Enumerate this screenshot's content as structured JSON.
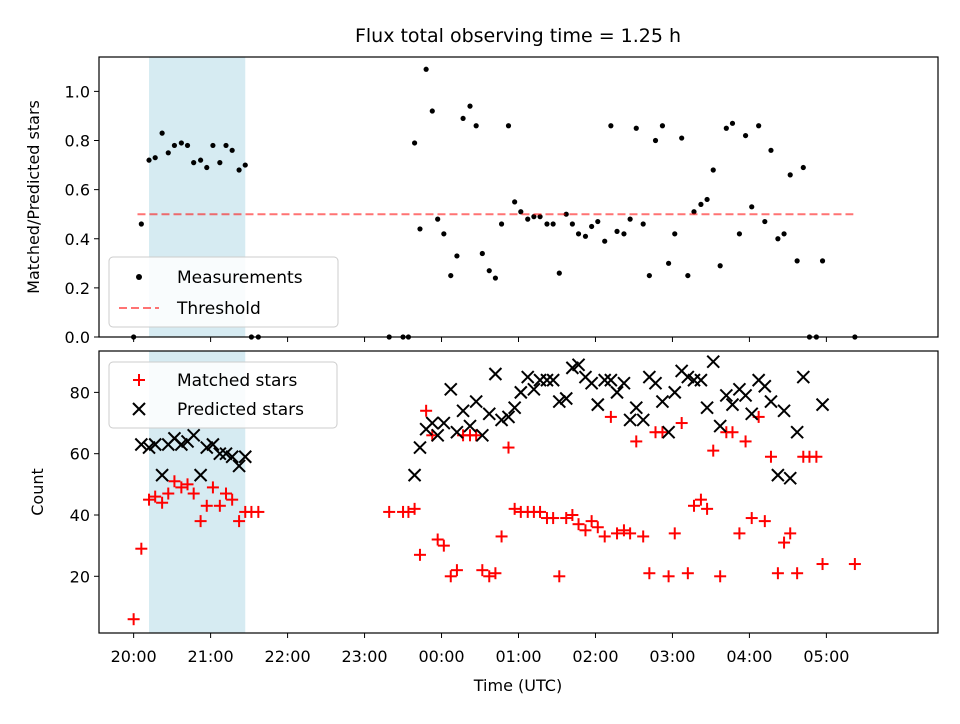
{
  "title": "Flux total observing time = 1.25 h",
  "xlabel": "Time (UTC)",
  "x_ticks": [
    "20:00",
    "21:00",
    "22:00",
    "23:00",
    "00:00",
    "01:00",
    "02:00",
    "03:00",
    "04:00",
    "05:00"
  ],
  "x_tick_hours": [
    20,
    21,
    22,
    23,
    24,
    25,
    26,
    27,
    28,
    29
  ],
  "x_range_hours": [
    19.55,
    30.45
  ],
  "highlight_span_hours": [
    20.2,
    21.45
  ],
  "colors": {
    "highlight": "#add8e6",
    "measurements": "#000000",
    "threshold": "#ff0000",
    "matched": "#ff0000",
    "predicted": "#000000"
  },
  "chart_data": [
    {
      "type": "scatter",
      "ylabel": "Matched/Predicted stars",
      "ylim": [
        0.0,
        1.14
      ],
      "y_ticks": [
        "0.0",
        "0.2",
        "0.4",
        "0.6",
        "0.8",
        "1.0"
      ],
      "y_tick_values": [
        0.0,
        0.2,
        0.4,
        0.6,
        0.8,
        1.0
      ],
      "legend": {
        "placement": "lower-left",
        "entries": [
          "Measurements",
          "Threshold"
        ]
      },
      "threshold": {
        "name": "Threshold",
        "value": 0.5,
        "x_range_hours": [
          20.05,
          29.35
        ]
      },
      "series": [
        {
          "name": "Measurements",
          "marker": "dot",
          "points": [
            [
              20.0,
              0.0
            ],
            [
              20.1,
              0.46
            ],
            [
              20.2,
              0.72
            ],
            [
              20.28,
              0.73
            ],
            [
              20.37,
              0.83
            ],
            [
              20.45,
              0.75
            ],
            [
              20.53,
              0.78
            ],
            [
              20.62,
              0.79
            ],
            [
              20.7,
              0.78
            ],
            [
              20.78,
              0.71
            ],
            [
              20.87,
              0.72
            ],
            [
              20.95,
              0.69
            ],
            [
              21.03,
              0.78
            ],
            [
              21.12,
              0.71
            ],
            [
              21.2,
              0.78
            ],
            [
              21.28,
              0.76
            ],
            [
              21.37,
              0.68
            ],
            [
              21.45,
              0.7
            ],
            [
              21.53,
              0.0
            ],
            [
              21.62,
              0.0
            ],
            [
              23.32,
              0.0
            ],
            [
              23.5,
              0.0
            ],
            [
              23.57,
              0.0
            ],
            [
              23.65,
              0.79
            ],
            [
              23.72,
              0.44
            ],
            [
              23.8,
              1.09
            ],
            [
              23.88,
              0.92
            ],
            [
              23.95,
              0.48
            ],
            [
              24.03,
              0.42
            ],
            [
              24.12,
              0.25
            ],
            [
              24.2,
              0.33
            ],
            [
              24.28,
              0.89
            ],
            [
              24.37,
              0.94
            ],
            [
              24.45,
              0.86
            ],
            [
              24.53,
              0.34
            ],
            [
              24.62,
              0.27
            ],
            [
              24.7,
              0.24
            ],
            [
              24.78,
              0.46
            ],
            [
              24.87,
              0.86
            ],
            [
              24.95,
              0.55
            ],
            [
              25.03,
              0.51
            ],
            [
              25.12,
              0.48
            ],
            [
              25.2,
              0.49
            ],
            [
              25.28,
              0.49
            ],
            [
              25.37,
              0.46
            ],
            [
              25.45,
              0.46
            ],
            [
              25.53,
              0.26
            ],
            [
              25.62,
              0.5
            ],
            [
              25.7,
              0.46
            ],
            [
              25.78,
              0.42
            ],
            [
              25.87,
              0.41
            ],
            [
              25.95,
              0.45
            ],
            [
              26.03,
              0.47
            ],
            [
              26.12,
              0.39
            ],
            [
              26.2,
              0.86
            ],
            [
              26.28,
              0.43
            ],
            [
              26.37,
              0.42
            ],
            [
              26.45,
              0.48
            ],
            [
              26.53,
              0.85
            ],
            [
              26.62,
              0.46
            ],
            [
              26.7,
              0.25
            ],
            [
              26.78,
              0.8
            ],
            [
              26.87,
              0.86
            ],
            [
              26.95,
              0.3
            ],
            [
              27.03,
              0.42
            ],
            [
              27.12,
              0.81
            ],
            [
              27.2,
              0.25
            ],
            [
              27.28,
              0.51
            ],
            [
              27.37,
              0.54
            ],
            [
              27.45,
              0.56
            ],
            [
              27.53,
              0.68
            ],
            [
              27.62,
              0.29
            ],
            [
              27.7,
              0.85
            ],
            [
              27.78,
              0.87
            ],
            [
              27.87,
              0.42
            ],
            [
              27.95,
              0.82
            ],
            [
              28.03,
              0.53
            ],
            [
              28.12,
              0.86
            ],
            [
              28.2,
              0.47
            ],
            [
              28.28,
              0.76
            ],
            [
              28.37,
              0.4
            ],
            [
              28.45,
              0.42
            ],
            [
              28.53,
              0.66
            ],
            [
              28.62,
              0.31
            ],
            [
              28.7,
              0.69
            ],
            [
              28.78,
              0.0
            ],
            [
              28.87,
              0.0
            ],
            [
              28.95,
              0.31
            ],
            [
              29.37,
              0.0
            ]
          ]
        }
      ]
    },
    {
      "type": "scatter",
      "ylabel": "Count",
      "ylim": [
        1.5,
        93.5
      ],
      "y_ticks": [
        "20",
        "40",
        "60",
        "80"
      ],
      "y_tick_values": [
        20,
        40,
        60,
        80
      ],
      "legend": {
        "placement": "top-left",
        "entries": [
          "Matched stars",
          "Predicted stars"
        ]
      },
      "series": [
        {
          "name": "Matched stars",
          "marker": "plus",
          "points": [
            [
              20.0,
              6
            ],
            [
              20.1,
              29
            ],
            [
              20.2,
              45
            ],
            [
              20.28,
              46
            ],
            [
              20.37,
              44
            ],
            [
              20.45,
              47
            ],
            [
              20.53,
              51
            ],
            [
              20.62,
              49
            ],
            [
              20.7,
              50
            ],
            [
              20.78,
              47
            ],
            [
              20.87,
              38
            ],
            [
              20.95,
              43
            ],
            [
              21.03,
              49
            ],
            [
              21.12,
              43
            ],
            [
              21.2,
              47
            ],
            [
              21.28,
              45
            ],
            [
              21.37,
              38
            ],
            [
              21.45,
              41
            ],
            [
              21.53,
              41
            ],
            [
              21.62,
              41
            ],
            [
              23.32,
              41
            ],
            [
              23.5,
              41
            ],
            [
              23.57,
              41
            ],
            [
              23.65,
              42
            ],
            [
              23.72,
              27
            ],
            [
              23.8,
              74
            ],
            [
              23.88,
              66
            ],
            [
              23.95,
              32
            ],
            [
              24.03,
              30
            ],
            [
              24.12,
              20
            ],
            [
              24.2,
              22
            ],
            [
              24.28,
              66
            ],
            [
              24.37,
              66
            ],
            [
              24.45,
              66
            ],
            [
              24.53,
              22
            ],
            [
              24.62,
              20
            ],
            [
              24.7,
              21
            ],
            [
              24.78,
              33
            ],
            [
              24.87,
              62
            ],
            [
              24.95,
              42
            ],
            [
              25.03,
              41
            ],
            [
              25.12,
              41
            ],
            [
              25.2,
              41
            ],
            [
              25.28,
              41
            ],
            [
              25.37,
              39
            ],
            [
              25.45,
              39
            ],
            [
              25.53,
              20
            ],
            [
              25.62,
              39
            ],
            [
              25.7,
              40
            ],
            [
              25.78,
              37
            ],
            [
              25.87,
              35
            ],
            [
              25.95,
              38
            ],
            [
              26.03,
              36
            ],
            [
              26.12,
              33
            ],
            [
              26.2,
              72
            ],
            [
              26.28,
              34
            ],
            [
              26.37,
              35
            ],
            [
              26.45,
              34
            ],
            [
              26.53,
              64
            ],
            [
              26.62,
              33
            ],
            [
              26.7,
              21
            ],
            [
              26.78,
              67
            ],
            [
              26.87,
              67
            ],
            [
              26.95,
              20
            ],
            [
              27.03,
              34
            ],
            [
              27.12,
              70
            ],
            [
              27.2,
              21
            ],
            [
              27.28,
              43
            ],
            [
              27.37,
              45
            ],
            [
              27.45,
              42
            ],
            [
              27.53,
              61
            ],
            [
              27.62,
              20
            ],
            [
              27.7,
              67
            ],
            [
              27.78,
              67
            ],
            [
              27.87,
              34
            ],
            [
              27.95,
              64
            ],
            [
              28.03,
              39
            ],
            [
              28.12,
              72
            ],
            [
              28.2,
              38
            ],
            [
              28.28,
              59
            ],
            [
              28.37,
              21
            ],
            [
              28.45,
              31
            ],
            [
              28.53,
              34
            ],
            [
              28.62,
              21
            ],
            [
              28.7,
              59
            ],
            [
              28.78,
              59
            ],
            [
              28.87,
              59
            ],
            [
              28.95,
              24
            ],
            [
              29.37,
              24
            ]
          ]
        },
        {
          "name": "Predicted stars",
          "marker": "x",
          "points": [
            [
              20.1,
              63
            ],
            [
              20.2,
              62
            ],
            [
              20.28,
              63
            ],
            [
              20.37,
              53
            ],
            [
              20.45,
              63
            ],
            [
              20.53,
              65
            ],
            [
              20.62,
              63
            ],
            [
              20.7,
              64
            ],
            [
              20.78,
              66
            ],
            [
              20.87,
              53
            ],
            [
              20.95,
              62
            ],
            [
              21.03,
              63
            ],
            [
              21.12,
              60
            ],
            [
              21.2,
              60
            ],
            [
              21.28,
              59
            ],
            [
              21.37,
              56
            ],
            [
              21.45,
              59
            ],
            [
              23.65,
              53
            ],
            [
              23.72,
              62
            ],
            [
              23.8,
              68
            ],
            [
              23.88,
              70
            ],
            [
              23.95,
              66
            ],
            [
              24.03,
              70
            ],
            [
              24.12,
              81
            ],
            [
              24.2,
              67
            ],
            [
              24.28,
              74
            ],
            [
              24.37,
              69
            ],
            [
              24.45,
              77
            ],
            [
              24.53,
              66
            ],
            [
              24.62,
              73
            ],
            [
              24.7,
              86
            ],
            [
              24.78,
              71
            ],
            [
              24.87,
              72
            ],
            [
              24.95,
              75
            ],
            [
              25.03,
              80
            ],
            [
              25.12,
              85
            ],
            [
              25.2,
              81
            ],
            [
              25.28,
              84
            ],
            [
              25.37,
              84
            ],
            [
              25.45,
              84
            ],
            [
              25.53,
              77
            ],
            [
              25.62,
              78
            ],
            [
              25.7,
              88
            ],
            [
              25.78,
              89
            ],
            [
              25.87,
              85
            ],
            [
              25.95,
              83
            ],
            [
              26.03,
              76
            ],
            [
              26.12,
              84
            ],
            [
              26.2,
              84
            ],
            [
              26.28,
              80
            ],
            [
              26.37,
              83
            ],
            [
              26.45,
              71
            ],
            [
              26.53,
              75
            ],
            [
              26.62,
              71
            ],
            [
              26.7,
              85
            ],
            [
              26.78,
              83
            ],
            [
              26.87,
              77
            ],
            [
              26.95,
              67
            ],
            [
              27.03,
              80
            ],
            [
              27.12,
              87
            ],
            [
              27.2,
              85
            ],
            [
              27.28,
              84
            ],
            [
              27.37,
              84
            ],
            [
              27.45,
              75
            ],
            [
              27.53,
              90
            ],
            [
              27.62,
              69
            ],
            [
              27.7,
              79
            ],
            [
              27.78,
              76
            ],
            [
              27.87,
              81
            ],
            [
              27.95,
              79
            ],
            [
              28.03,
              73
            ],
            [
              28.12,
              84
            ],
            [
              28.2,
              82
            ],
            [
              28.28,
              77
            ],
            [
              28.37,
              53
            ],
            [
              28.45,
              74
            ],
            [
              28.53,
              52
            ],
            [
              28.62,
              67
            ],
            [
              28.7,
              85
            ],
            [
              28.95,
              76
            ]
          ]
        }
      ]
    }
  ]
}
